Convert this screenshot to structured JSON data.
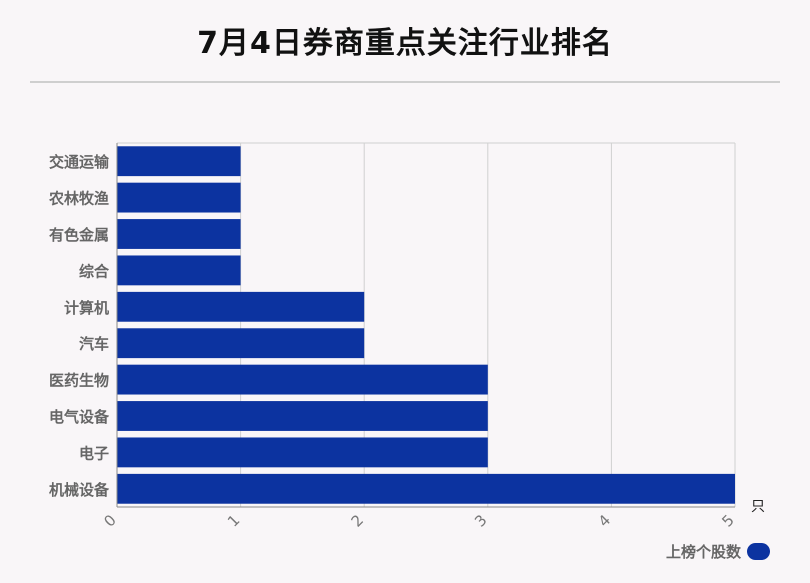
{
  "title": "7月4日券商重点关注行业排名",
  "unit": "只",
  "legend": {
    "label": "上榜个股数",
    "color": "#0c33a0"
  },
  "chart_data": {
    "type": "bar",
    "orientation": "horizontal",
    "categories": [
      "交通运输",
      "农林牧渔",
      "有色金属",
      "综合",
      "计算机",
      "汽车",
      "医药生物",
      "电气设备",
      "电子",
      "机械设备"
    ],
    "series": [
      {
        "name": "上榜个股数",
        "values": [
          1,
          1,
          1,
          1,
          2,
          2,
          3,
          3,
          3,
          5
        ]
      }
    ],
    "xlim": [
      0,
      5
    ],
    "xticks": [
      "0",
      "1",
      "2",
      "3",
      "4",
      "5"
    ],
    "xlabel": "只",
    "ylabel": "",
    "grid": true,
    "legend_position": "bottom-right",
    "bar_color": "#0c33a0"
  }
}
